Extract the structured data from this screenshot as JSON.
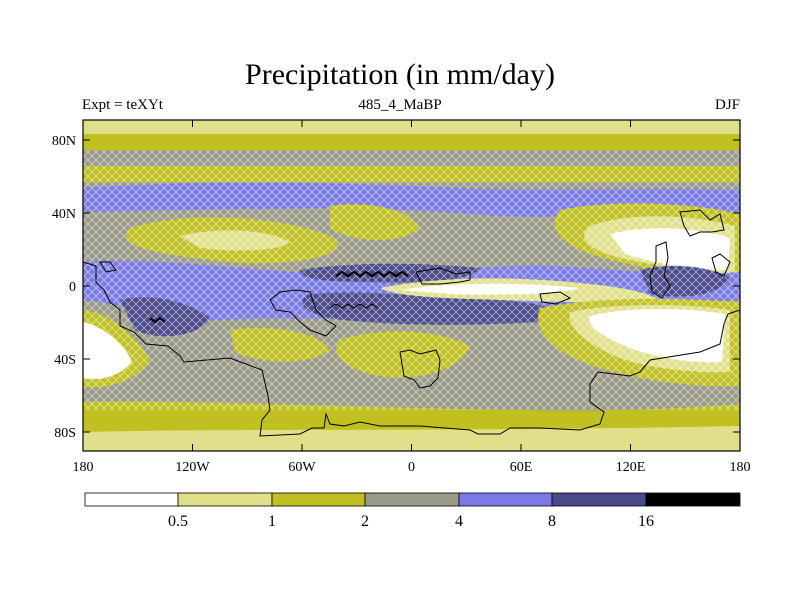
{
  "title": "Precipitation (in mm/day)",
  "subtitle_left": "Expt = teXYt",
  "subtitle_center": "485_4_MaBP",
  "subtitle_right": "DJF",
  "y_ticks": [
    "80N",
    "40N",
    "0",
    "40S",
    "80S"
  ],
  "x_ticks": [
    "180",
    "120W",
    "60W",
    "0",
    "60E",
    "120E",
    "180"
  ],
  "colorbar": {
    "colors": [
      "#ffffff",
      "#e0e08a",
      "#c0c020",
      "#9a9a88",
      "#7a7ae6",
      "#4a4a8a",
      "#000000"
    ],
    "labels": [
      "0.5",
      "1",
      "2",
      "4",
      "8",
      "16"
    ]
  }
}
